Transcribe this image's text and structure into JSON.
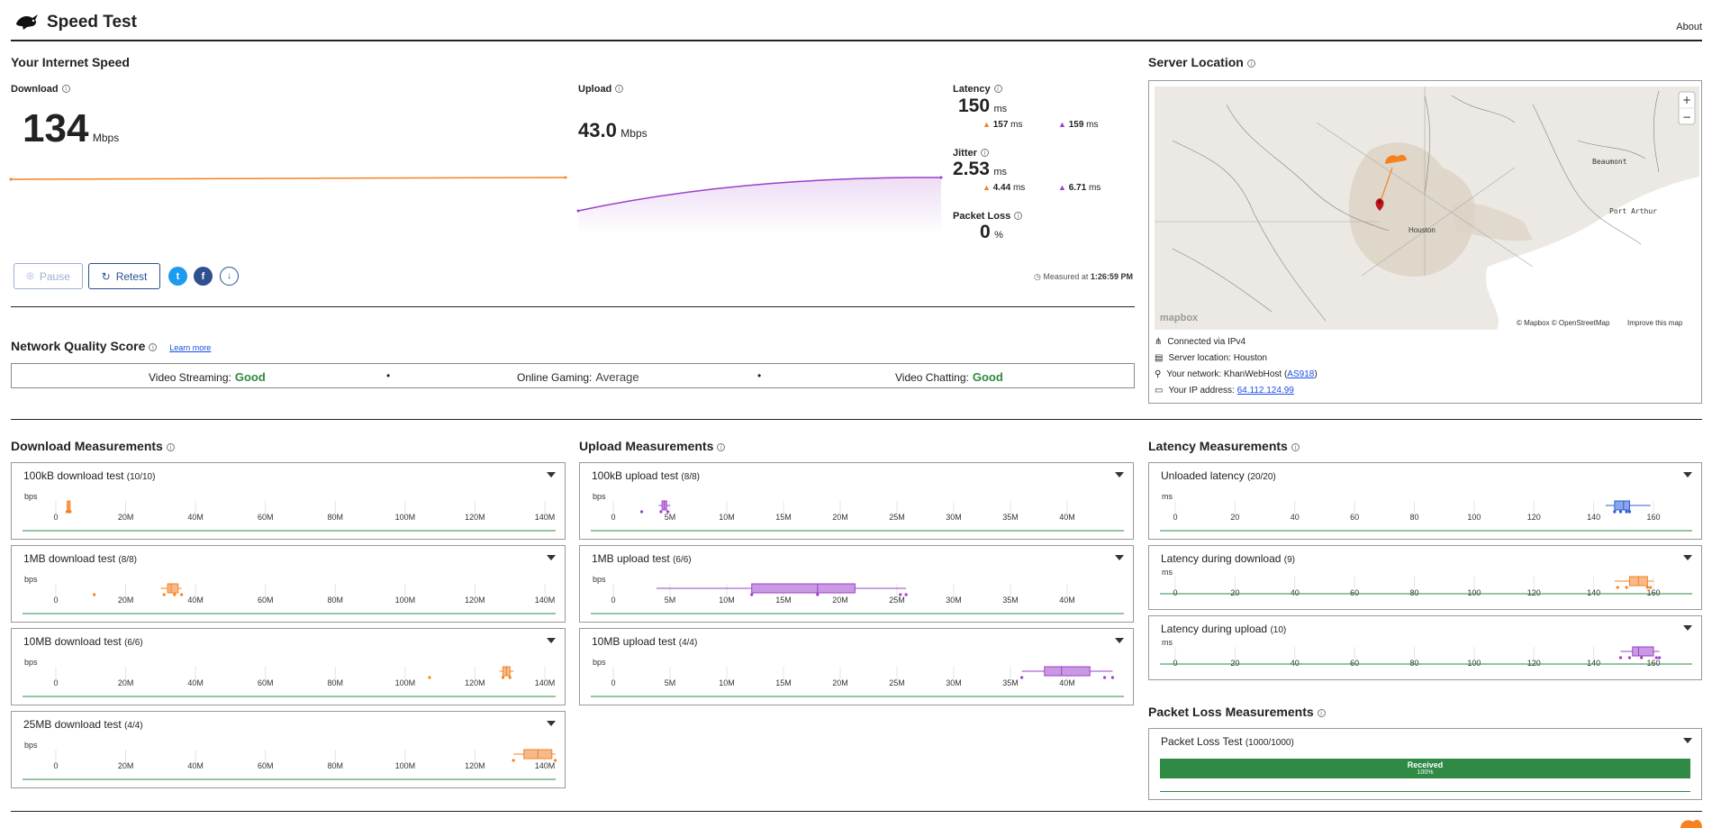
{
  "header": {
    "title": "Speed Test",
    "about": "About"
  },
  "speed": {
    "title": "Your Internet Speed",
    "download": {
      "label": "Download",
      "value": "134",
      "unit": "Mbps"
    },
    "upload": {
      "label": "Upload",
      "value": "43.0",
      "unit": "Mbps"
    },
    "latency": {
      "label": "Latency",
      "value": "150",
      "unit": "ms",
      "down": "157",
      "down_unit": "ms",
      "up": "159",
      "up_unit": "ms"
    },
    "jitter": {
      "label": "Jitter",
      "value": "2.53",
      "unit": "ms",
      "down": "4.44",
      "down_unit": "ms",
      "up": "6.71",
      "up_unit": "ms"
    },
    "packet_loss": {
      "label": "Packet Loss",
      "value": "0",
      "unit": "%"
    },
    "measured_prefix": "Measured at",
    "measured_time": "1:26:59 PM",
    "buttons": {
      "pause": "Pause",
      "retest": "Retest"
    }
  },
  "quality": {
    "title": "Network Quality Score",
    "learn_more": "Learn more",
    "items": [
      {
        "label": "Video Streaming:",
        "value": "Good"
      },
      {
        "label": "Online Gaming:",
        "value": "Average"
      },
      {
        "label": "Video Chatting:",
        "value": "Good"
      }
    ],
    "separator": "•"
  },
  "server": {
    "title": "Server Location",
    "map_labels": {
      "houston": "Houston",
      "beaumont": "Beaumont",
      "port_arthur": "Port Arthur",
      "mapbox": "mapbox",
      "attribution": "© Mapbox © OpenStreetMap",
      "improve": "Improve this map",
      "zoom_in": "+",
      "zoom_out": "−"
    },
    "connected": "Connected via IPv4",
    "location_label": "Server location:",
    "location": "Houston",
    "network_label": "Your network:",
    "network": "KhanWebHost",
    "asn": "AS918",
    "ip_label": "Your IP address:",
    "ip": "64.112.124.99"
  },
  "download_measurements": {
    "title": "Download Measurements",
    "axis_unit": "bps",
    "ticks": [
      "0",
      "20M",
      "40M",
      "60M",
      "80M",
      "100M",
      "120M",
      "140M"
    ],
    "tests": [
      {
        "name": "100kB download test",
        "count": "(10/10)"
      },
      {
        "name": "1MB download test",
        "count": "(8/8)"
      },
      {
        "name": "10MB download test",
        "count": "(6/6)"
      },
      {
        "name": "25MB download test",
        "count": "(4/4)"
      }
    ]
  },
  "upload_measurements": {
    "title": "Upload Measurements",
    "axis_unit": "bps",
    "ticks": [
      "0",
      "5M",
      "10M",
      "15M",
      "20M",
      "25M",
      "30M",
      "35M",
      "40M"
    ],
    "tests": [
      {
        "name": "100kB upload test",
        "count": "(8/8)"
      },
      {
        "name": "1MB upload test",
        "count": "(6/6)"
      },
      {
        "name": "10MB upload test",
        "count": "(4/4)"
      }
    ]
  },
  "latency_measurements": {
    "title": "Latency Measurements",
    "axis_unit": "ms",
    "ticks": [
      "0",
      "20",
      "40",
      "60",
      "80",
      "100",
      "120",
      "140",
      "160"
    ],
    "tests": [
      {
        "name": "Unloaded latency",
        "count": "(20/20)"
      },
      {
        "name": "Latency during download",
        "count": "(9)"
      },
      {
        "name": "Latency during upload",
        "count": "(10)"
      }
    ]
  },
  "packet_loss_measurements": {
    "title": "Packet Loss Measurements",
    "test": {
      "name": "Packet Loss Test",
      "count": "(1000/1000)"
    },
    "received_label": "Received",
    "received_pct": "100%",
    "received_fraction": 1.0
  },
  "colors": {
    "download": "#f6821f",
    "upload": "#9b3fc9",
    "latency": "#2a5bd7",
    "good": "#2f8a3f",
    "bar_green": "#2e8a44"
  }
}
